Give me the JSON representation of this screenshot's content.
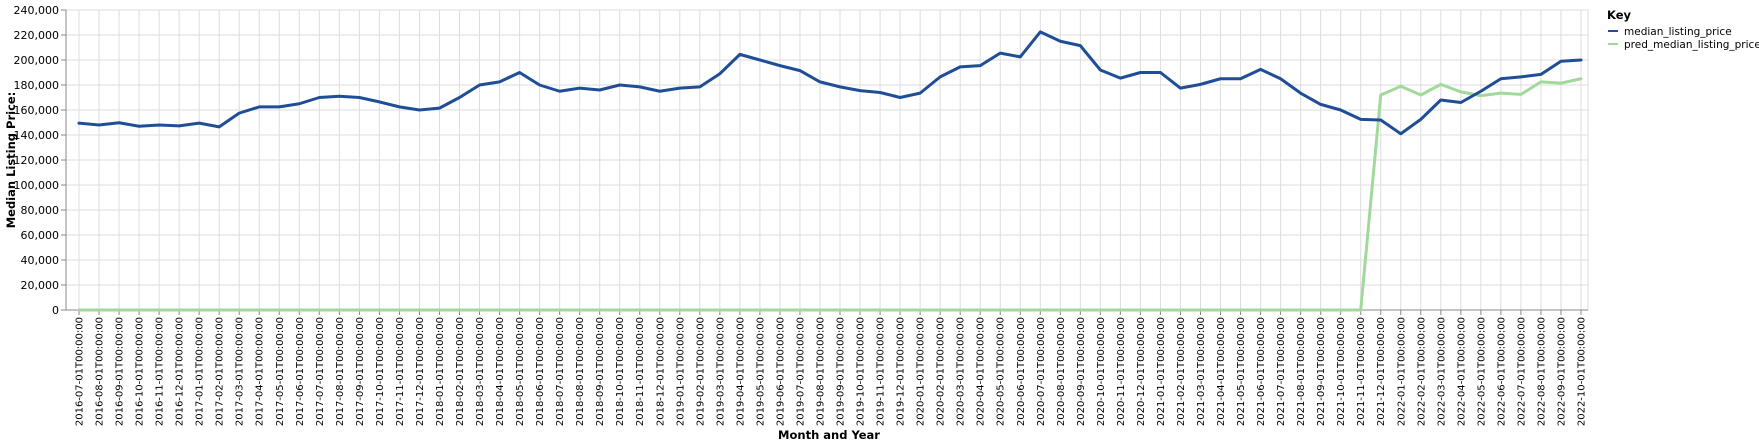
{
  "chart_data": {
    "type": "line",
    "xlabel": "Month and Year",
    "ylabel": "Median Listing Price:",
    "ylim": [
      0,
      240000
    ],
    "yticks": [
      "0",
      "20,000",
      "40,000",
      "60,000",
      "80,000",
      "100,000",
      "120,000",
      "140,000",
      "160,000",
      "180,000",
      "200,000",
      "220,000",
      "240,000"
    ],
    "grid": true,
    "legend": {
      "title": "Key",
      "placement": "top-right"
    },
    "x": [
      "2016-07-01T00:00:00",
      "2016-08-01T00:00:00",
      "2016-09-01T00:00:00",
      "2016-10-01T00:00:00",
      "2016-11-01T00:00:00",
      "2016-12-01T00:00:00",
      "2017-01-01T00:00:00",
      "2017-02-01T00:00:00",
      "2017-03-01T00:00:00",
      "2017-04-01T00:00:00",
      "2017-05-01T00:00:00",
      "2017-06-01T00:00:00",
      "2017-07-01T00:00:00",
      "2017-08-01T00:00:00",
      "2017-09-01T00:00:00",
      "2017-10-01T00:00:00",
      "2017-11-01T00:00:00",
      "2017-12-01T00:00:00",
      "2018-01-01T00:00:00",
      "2018-02-01T00:00:00",
      "2018-03-01T00:00:00",
      "2018-04-01T00:00:00",
      "2018-05-01T00:00:00",
      "2018-06-01T00:00:00",
      "2018-07-01T00:00:00",
      "2018-08-01T00:00:00",
      "2018-09-01T00:00:00",
      "2018-10-01T00:00:00",
      "2018-11-01T00:00:00",
      "2018-12-01T00:00:00",
      "2019-01-01T00:00:00",
      "2019-02-01T00:00:00",
      "2019-03-01T00:00:00",
      "2019-04-01T00:00:00",
      "2019-05-01T00:00:00",
      "2019-06-01T00:00:00",
      "2019-07-01T00:00:00",
      "2019-08-01T00:00:00",
      "2019-09-01T00:00:00",
      "2019-10-01T00:00:00",
      "2019-11-01T00:00:00",
      "2019-12-01T00:00:00",
      "2020-01-01T00:00:00",
      "2020-02-01T00:00:00",
      "2020-03-01T00:00:00",
      "2020-04-01T00:00:00",
      "2020-05-01T00:00:00",
      "2020-06-01T00:00:00",
      "2020-07-01T00:00:00",
      "2020-08-01T00:00:00",
      "2020-09-01T00:00:00",
      "2020-10-01T00:00:00",
      "2020-11-01T00:00:00",
      "2020-12-01T00:00:00",
      "2021-01-01T00:00:00",
      "2021-02-01T00:00:00",
      "2021-03-01T00:00:00",
      "2021-04-01T00:00:00",
      "2021-05-01T00:00:00",
      "2021-06-01T00:00:00",
      "2021-07-01T00:00:00",
      "2021-08-01T00:00:00",
      "2021-09-01T00:00:00",
      "2021-10-01T00:00:00",
      "2021-11-01T00:00:00",
      "2021-12-01T00:00:00",
      "2022-01-01T00:00:00",
      "2022-02-01T00:00:00",
      "2022-03-01T00:00:00",
      "2022-04-01T00:00:00",
      "2022-05-01T00:00:00",
      "2022-06-01T00:00:00",
      "2022-07-01T00:00:00",
      "2022-08-01T00:00:00",
      "2022-09-01T00:00:00",
      "2022-10-01T00:00:00"
    ],
    "series": [
      {
        "name": "median_listing_price",
        "color": "#1f4e96",
        "values": [
          149500,
          148000,
          149800,
          147000,
          148000,
          147300,
          149500,
          146500,
          157500,
          162500,
          162500,
          165000,
          170000,
          171000,
          170000,
          166500,
          162500,
          160000,
          161500,
          170000,
          180000,
          182500,
          190000,
          180000,
          175000,
          177500,
          176000,
          180000,
          178500,
          175000,
          177500,
          178500,
          189000,
          204500,
          200000,
          195500,
          191500,
          182500,
          178500,
          175500,
          174000,
          170000,
          173500,
          186500,
          194500,
          195500,
          205500,
          202500,
          222500,
          215000,
          211500,
          192000,
          185500,
          190000,
          190000,
          177500,
          180500,
          185000,
          185000,
          192500,
          185000,
          173500,
          164500,
          160000,
          152500,
          152000,
          141000,
          152500,
          168000,
          166000,
          175000,
          185000,
          186500,
          188500,
          199000,
          200000
        ]
      },
      {
        "name": "pred_median_listing_price",
        "color": "#a1d99b",
        "values": [
          0,
          0,
          0,
          0,
          0,
          0,
          0,
          0,
          0,
          0,
          0,
          0,
          0,
          0,
          0,
          0,
          0,
          0,
          0,
          0,
          0,
          0,
          0,
          0,
          0,
          0,
          0,
          0,
          0,
          0,
          0,
          0,
          0,
          0,
          0,
          0,
          0,
          0,
          0,
          0,
          0,
          0,
          0,
          0,
          0,
          0,
          0,
          0,
          0,
          0,
          0,
          0,
          0,
          0,
          0,
          0,
          0,
          0,
          0,
          0,
          0,
          0,
          0,
          0,
          0,
          172000,
          179000,
          172000,
          180500,
          174500,
          171500,
          173500,
          172500,
          182500,
          181500,
          185000
        ]
      }
    ]
  }
}
